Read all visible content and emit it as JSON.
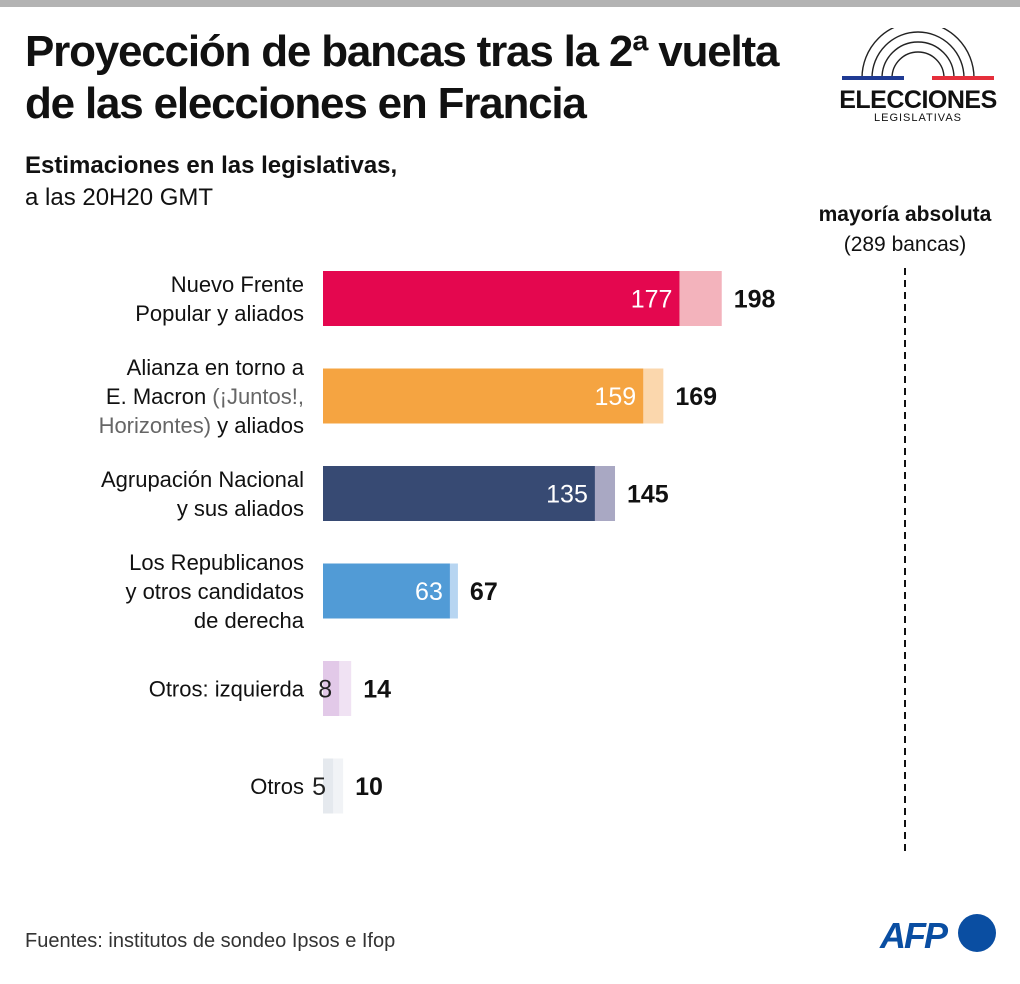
{
  "header": {
    "title": "Proyección de bancas tras la 2ª vuelta de las elecciones en Francia",
    "subtitle_line1": "Estimaciones en las legislativas,",
    "subtitle_line2": "a las 20H20 GMT"
  },
  "logo": {
    "main": "ELECCIONES",
    "sub": "LEGISLATIVAS",
    "colors": [
      "#1f3a93",
      "#e52f3b"
    ]
  },
  "majority": {
    "label": "mayoría absoluta",
    "detail": "(289 bancas)",
    "value": 289
  },
  "chart_data": {
    "type": "bar",
    "orientation": "horizontal",
    "title": "Proyección de bancas tras la 2ª vuelta de las elecciones en Francia",
    "categories": [
      "Nuevo Frente Popular y aliados",
      "Alianza en torno a E. Macron (¡Juntos!, Horizontes) y aliados",
      "Agrupación Nacional y sus aliados",
      "Los Republicanos y otros candidatos de derecha",
      "Otros: izquierda",
      "Otros"
    ],
    "label_lines": [
      [
        [
          {
            "t": "Nuevo Frente",
            "light": false
          }
        ],
        [
          {
            "t": "Popular y aliados",
            "light": false
          }
        ]
      ],
      [
        [
          {
            "t": "Alianza en torno a",
            "light": false
          }
        ],
        [
          {
            "t": "E. Macron ",
            "light": false
          },
          {
            "t": "(¡Juntos!,",
            "light": true
          }
        ],
        [
          {
            "t": "Horizontes)",
            "light": true
          },
          {
            "t": " y aliados",
            "light": false
          }
        ]
      ],
      [
        [
          {
            "t": "Agrupación Nacional",
            "light": false
          }
        ],
        [
          {
            "t": "y sus aliados",
            "light": false
          }
        ]
      ],
      [
        [
          {
            "t": "Los Republicanos",
            "light": false
          }
        ],
        [
          {
            "t": "y otros candidatos",
            "light": false
          }
        ],
        [
          {
            "t": "de derecha",
            "light": false
          }
        ]
      ],
      [
        [
          {
            "t": "Otros: izquierda",
            "light": false
          }
        ]
      ],
      [
        [
          {
            "t": "Otros",
            "light": false
          }
        ]
      ]
    ],
    "series": [
      {
        "values": [
          177,
          159,
          135,
          63,
          8,
          5
        ]
      },
      {
        "values": [
          198,
          169,
          145,
          67,
          14,
          10
        ]
      }
    ],
    "colors_min": [
      "#e4074f",
      "#f5a441",
      "#374a73",
      "#519bd6",
      "#e2c9e8",
      "#e5e9ee"
    ],
    "colors_max": [
      "#f3b3bc",
      "#fbd7ad",
      "#a9a8c3",
      "#b7d5f1",
      "#f0e2f3",
      "#f1f3f6"
    ],
    "min_label_colors": [
      "#ffffff",
      "#ffffff",
      "#ffffff",
      "#ffffff",
      "#222222",
      "#222222"
    ],
    "xlim": [
      0,
      289
    ],
    "reference_line": 289,
    "grid": false,
    "legend": "none"
  },
  "footer": {
    "source": "Fuentes: institutos de sondeo Ipsos e Ifop",
    "brand": "AFP"
  }
}
